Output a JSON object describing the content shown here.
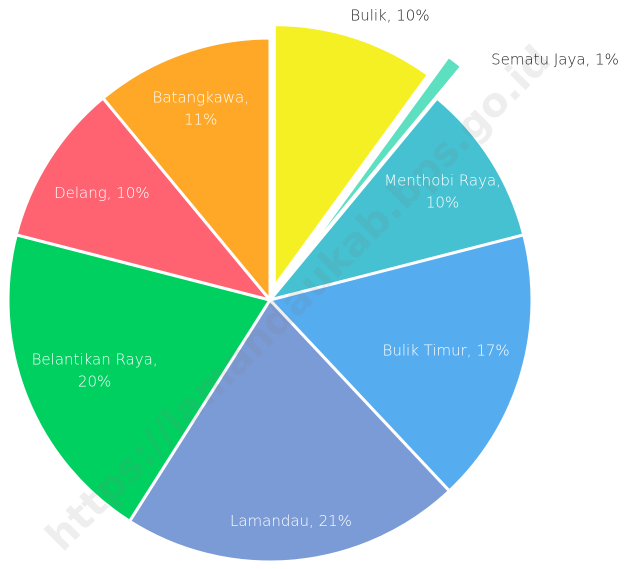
{
  "chart_data": {
    "type": "pie",
    "values": [
      10,
      1,
      10,
      17,
      21,
      20,
      10,
      11
    ],
    "value_labels": [
      "Bulik, 10%",
      "Sematu Jaya, 1%",
      "Menthobi Raya, 10%",
      "Bulik Timur, 17%",
      "Lamandau, 21%",
      "Belantikan Raya, 20%",
      "Delang, 10%",
      "Batangkawa, 11%"
    ],
    "colors": [
      "#f5f023",
      "#5de0c0",
      "#45c1d1",
      "#55acef",
      "#7b9bd6",
      "#00d060",
      "#ff6270",
      "#ffa726"
    ],
    "watermark": "https://lamandaukab.bps.go.id"
  }
}
